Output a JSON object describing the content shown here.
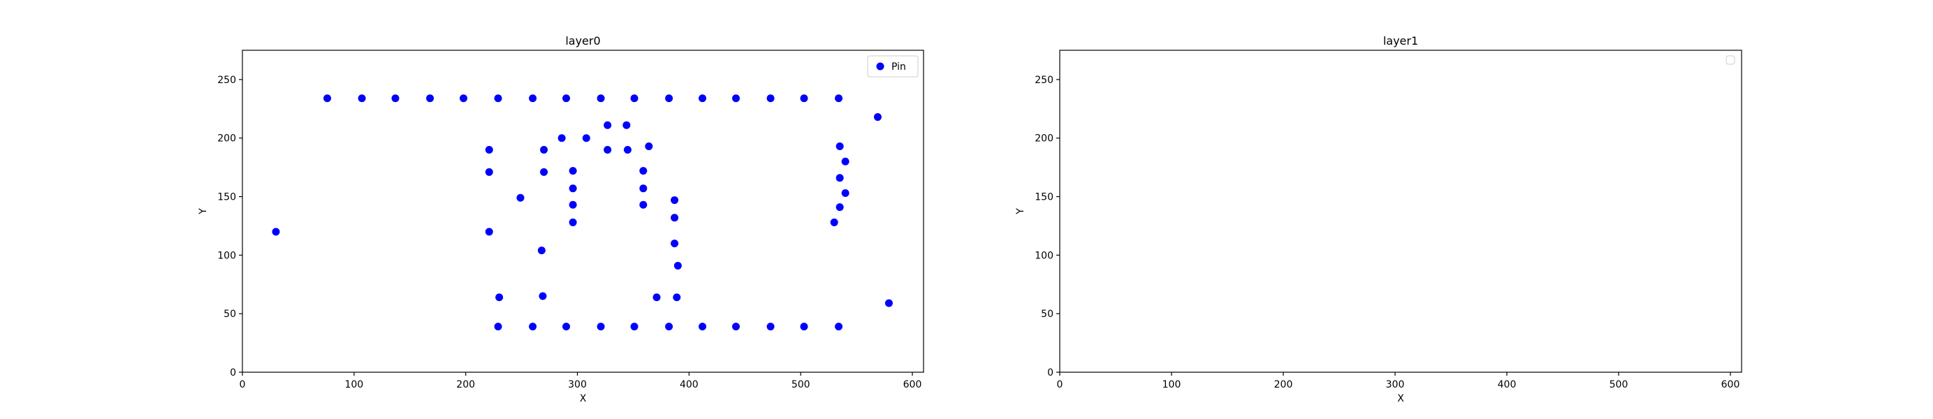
{
  "chart_data": [
    {
      "type": "scatter",
      "title": "layer0",
      "xlabel": "X",
      "ylabel": "Y",
      "xlim": [
        0,
        610
      ],
      "ylim": [
        0,
        275
      ],
      "xticks": [
        0,
        100,
        200,
        300,
        400,
        500,
        600
      ],
      "yticks": [
        0,
        50,
        100,
        150,
        200,
        250
      ],
      "grid": false,
      "legend": "top-right",
      "series": [
        {
          "name": "Pin",
          "color": "#0000ff",
          "points": [
            [
              76,
              234
            ],
            [
              107,
              234
            ],
            [
              137,
              234
            ],
            [
              168,
              234
            ],
            [
              198,
              234
            ],
            [
              229,
              234
            ],
            [
              260,
              234
            ],
            [
              290,
              234
            ],
            [
              321,
              234
            ],
            [
              351,
              234
            ],
            [
              382,
              234
            ],
            [
              412,
              234
            ],
            [
              442,
              234
            ],
            [
              473,
              234
            ],
            [
              503,
              234
            ],
            [
              534,
              234
            ],
            [
              569,
              218
            ],
            [
              229,
              39
            ],
            [
              260,
              39
            ],
            [
              290,
              39
            ],
            [
              321,
              39
            ],
            [
              351,
              39
            ],
            [
              382,
              39
            ],
            [
              412,
              39
            ],
            [
              442,
              39
            ],
            [
              473,
              39
            ],
            [
              503,
              39
            ],
            [
              534,
              39
            ],
            [
              30,
              120
            ],
            [
              579,
              59
            ],
            [
              221,
              190
            ],
            [
              221,
              171
            ],
            [
              221,
              120
            ],
            [
              270,
              190
            ],
            [
              270,
              171
            ],
            [
              286,
              200
            ],
            [
              308,
              200
            ],
            [
              327,
              211
            ],
            [
              344,
              211
            ],
            [
              327,
              190
            ],
            [
              345,
              190
            ],
            [
              364,
              193
            ],
            [
              296,
              172
            ],
            [
              296,
              157
            ],
            [
              296,
              143
            ],
            [
              296,
              128
            ],
            [
              359,
              172
            ],
            [
              359,
              157
            ],
            [
              359,
              143
            ],
            [
              249,
              149
            ],
            [
              268,
              104
            ],
            [
              230,
              64
            ],
            [
              269,
              65
            ],
            [
              371,
              64
            ],
            [
              389,
              64
            ],
            [
              387,
              147
            ],
            [
              387,
              132
            ],
            [
              387,
              110
            ],
            [
              390,
              91
            ],
            [
              535,
              193
            ],
            [
              540,
              180
            ],
            [
              535,
              166
            ],
            [
              540,
              153
            ],
            [
              535,
              141
            ],
            [
              530,
              128
            ]
          ]
        }
      ]
    },
    {
      "type": "scatter",
      "title": "layer1",
      "xlabel": "X",
      "ylabel": "Y",
      "xlim": [
        0,
        610
      ],
      "ylim": [
        0,
        275
      ],
      "xticks": [
        0,
        100,
        200,
        300,
        400,
        500,
        600
      ],
      "yticks": [
        0,
        50,
        100,
        150,
        200,
        250
      ],
      "grid": false,
      "legend": "top-right",
      "series": []
    }
  ]
}
